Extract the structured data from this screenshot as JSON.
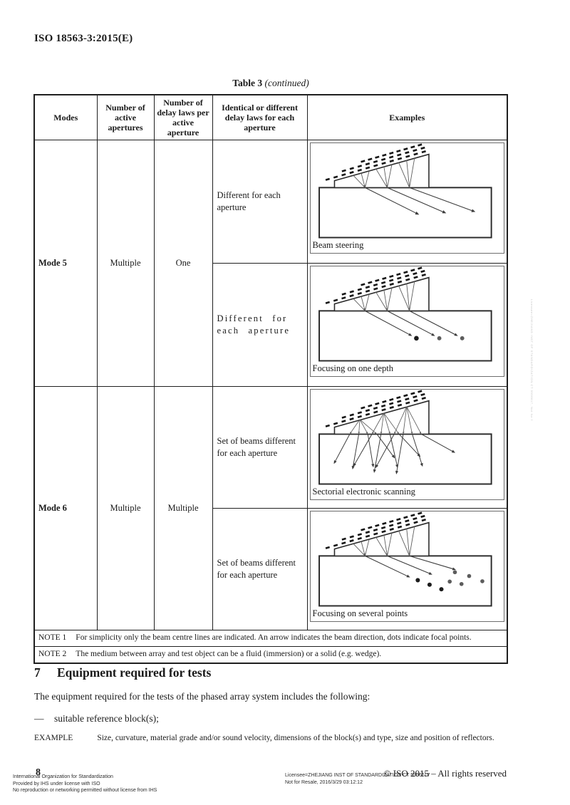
{
  "page": {
    "header_ref": "ISO 18563-3:2015(E)",
    "watermark_vertical": "Licensee=ZHEJIANG INST OF STANDARDIZATION CT 5956617, Not for Resale",
    "footer": {
      "page_number": "8",
      "left_lines": [
        "International Organization for Standardization",
        "Provided by IHS under license with ISO",
        "No reproduction or networking permitted without license from IHS"
      ],
      "license_line1": "Licensee=ZHEJIANG INST OF STANDARDIZATION CT 5956617",
      "license_line2": "Not for Resale, 2016/3/29 03:12:12",
      "copyright": "© ISO 2015 – All rights reserved"
    }
  },
  "table": {
    "title_bold": "Table 3",
    "title_italic": "(continued)",
    "headers": [
      "Modes",
      "Number of active apertures",
      "Number of delay laws per active aperture",
      "Identical or different delay laws for each aperture",
      "Examples"
    ],
    "rows": {
      "mode5": {
        "mode": "Mode 5",
        "apertures": "Multiple",
        "delay_laws": "One",
        "sub": [
          {
            "delay_desc": "Different for each aperture",
            "caption": "Beam steering"
          },
          {
            "delay_desc": "Different for each aperture",
            "caption": "Focusing on one depth"
          }
        ]
      },
      "mode6": {
        "mode": "Mode 6",
        "apertures": "Multiple",
        "delay_laws": "Multiple",
        "sub": [
          {
            "delay_desc": "Set of beams different for each aperture",
            "caption": "Sectorial electronic scanning"
          },
          {
            "delay_desc": "Set of beams different for each aperture",
            "caption": "Focusing on several points"
          }
        ]
      }
    },
    "notes": [
      {
        "label": "NOTE 1",
        "text": "For simplicity only the beam centre lines are indicated. An arrow indicates the beam direction, dots indicate focal points."
      },
      {
        "label": "NOTE 2",
        "text": "The medium between array and test object can be a fluid (immersion) or a solid (e.g. wedge)."
      }
    ]
  },
  "section": {
    "number": "7",
    "title": "Equipment required for tests",
    "paragraph": "The equipment required for the tests of the phased array system includes the following:",
    "bullet_dash": "—",
    "bullet_text": "suitable reference block(s);",
    "example_label": "EXAMPLE",
    "example_text": "Size, curvature, material grade and/or sound velocity, dimensions of the block(s) and type, size and position of reflectors."
  },
  "diagram_colors": {
    "outline": "#2a2a2a",
    "beam": "#5a5a5a",
    "arrow": "#3a3a3a",
    "focal_dark": "#1c1c1c",
    "focal_gray": "#5c5c5c"
  }
}
